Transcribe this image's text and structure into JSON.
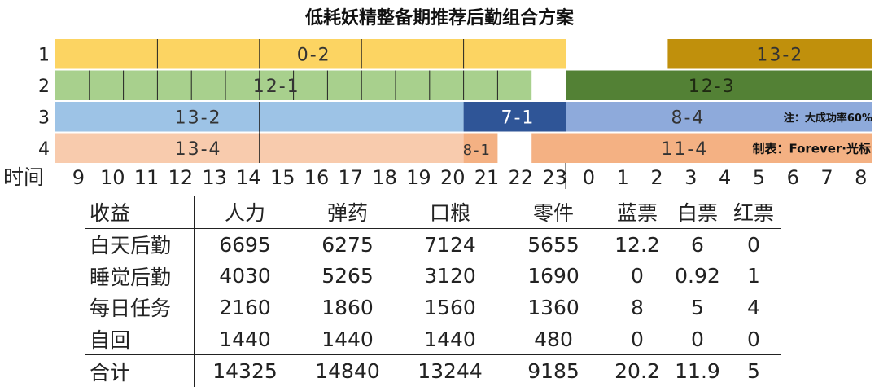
{
  "title": "低耗妖精整备期推荐后勤组合方案",
  "chart_data": {
    "type": "gantt",
    "axis_label": "时间",
    "hours": [
      "9",
      "10",
      "11",
      "12",
      "13",
      "14",
      "15",
      "16",
      "17",
      "18",
      "19",
      "20",
      "21",
      "22",
      "23",
      "0",
      "1",
      "2",
      "3",
      "4",
      "5",
      "6",
      "7",
      "8"
    ],
    "rows": [
      {
        "label": "1",
        "bars": [
          {
            "label": "0-2",
            "start": 0,
            "end": 15,
            "color": "#fcd462",
            "dividers": [
              3,
              6,
              9,
              12
            ],
            "text_at": 7.6,
            "text_color": "#333333"
          },
          {
            "label": "13-2",
            "start": 18,
            "end": 24,
            "color": "#c0900c",
            "text_at": 21.3,
            "text_color": "#333333"
          }
        ]
      },
      {
        "label": "2",
        "bars": [
          {
            "label": "12-1",
            "start": 0,
            "end": 14,
            "color": "#a8d08d",
            "dividers": [
              1,
              2,
              3,
              4,
              5,
              6,
              7,
              8,
              9,
              10,
              11,
              12,
              13
            ],
            "text_at": 6.5,
            "text_color": "#333333"
          },
          {
            "label": "12-3",
            "start": 15,
            "end": 24,
            "color": "#538135",
            "text_at": 19.3,
            "text_color": "#1f2a12"
          }
        ]
      },
      {
        "label": "3",
        "bars": [
          {
            "label": "13-2",
            "start": 0,
            "end": 12,
            "color": "#9dc3e6",
            "dividers": [
              6
            ],
            "text_at": 4.2,
            "text_color": "#333333"
          },
          {
            "label": "7-1",
            "start": 12,
            "end": 15,
            "color": "#2f5597",
            "text_at": 13.6,
            "text_color": "#ffffff"
          },
          {
            "label": "8-4",
            "start": 15,
            "end": 24,
            "color": "#8eaadb",
            "text_at": 18.6,
            "text_color": "#333333"
          }
        ]
      },
      {
        "label": "4",
        "bars": [
          {
            "label": "13-4",
            "start": 0,
            "end": 12,
            "color": "#f8cbad",
            "dividers": [
              6
            ],
            "text_at": 4.2,
            "text_color": "#333333"
          },
          {
            "label": "8-1",
            "start": 12,
            "end": 13,
            "color": "#f4b183",
            "text_at": 12.4,
            "text_color": "#333333"
          },
          {
            "label": "11-4",
            "start": 14,
            "end": 24,
            "color": "#f4b183",
            "text_at": 18.5,
            "text_color": "#333333"
          }
        ]
      }
    ],
    "notes": [
      "注：大成功率60%",
      "制表：Forever·光标"
    ]
  },
  "table": {
    "headers": [
      "收益",
      "人力",
      "弹药",
      "口粮",
      "零件",
      "蓝票",
      "白票",
      "红票"
    ],
    "rows": [
      [
        "白天后勤",
        "6695",
        "6275",
        "7124",
        "5655",
        "12.2",
        "6",
        "0"
      ],
      [
        "睡觉后勤",
        "4030",
        "5265",
        "3120",
        "1690",
        "0",
        "0.92",
        "1"
      ],
      [
        "每日任务",
        "2160",
        "1860",
        "1560",
        "1360",
        "8",
        "5",
        "4"
      ],
      [
        "自回",
        "1440",
        "1440",
        "1440",
        "480",
        "0",
        "0",
        "0"
      ]
    ],
    "total": [
      "合计",
      "14325",
      "14840",
      "13244",
      "9185",
      "20.2",
      "11.9",
      "5"
    ]
  }
}
